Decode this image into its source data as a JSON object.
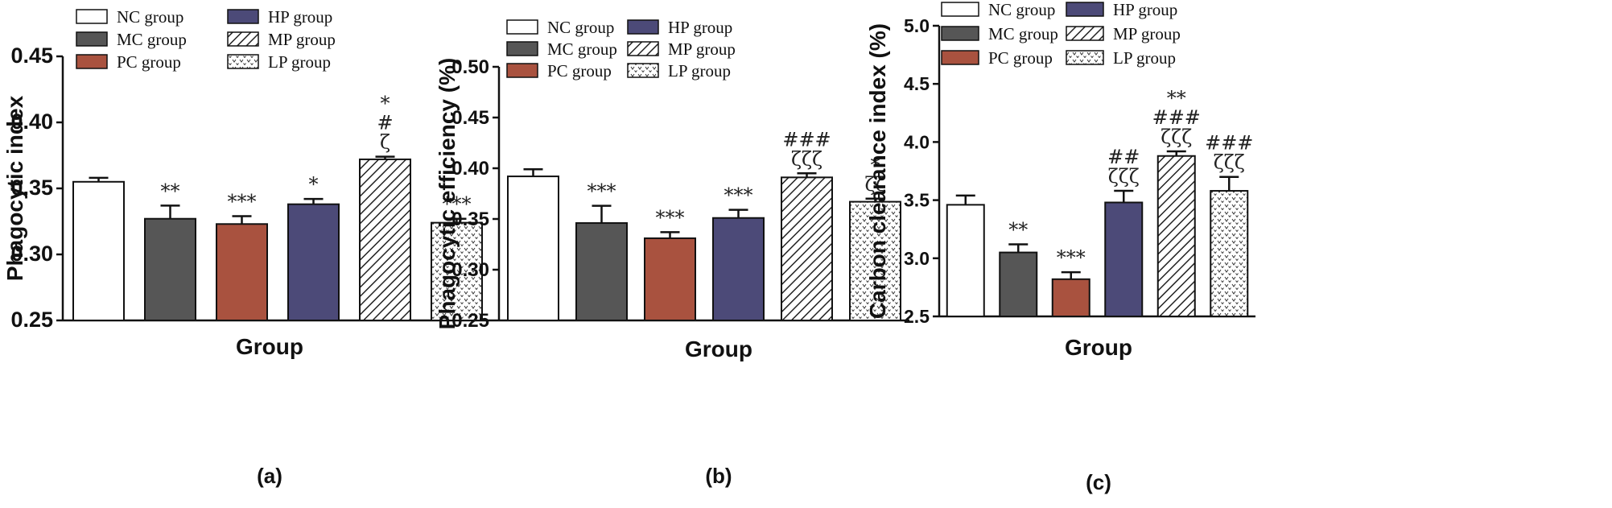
{
  "colors": {
    "NC": "#ffffff",
    "MC": "#565656",
    "PC": "#a9523f",
    "HP": "#4c4a78",
    "MP": "hatch",
    "LP": "dots"
  },
  "chart_data": [
    {
      "type": "bar",
      "panel_label": "(a)",
      "title": "",
      "xlabel": "Group",
      "ylabel": "Phagocytic index",
      "ylim": [
        0.25,
        0.45
      ],
      "yticks": [
        "0.25",
        "0.30",
        "0.35",
        "0.40",
        "0.45"
      ],
      "categories": [
        "NC group",
        "MC group",
        "PC group",
        "HP group",
        "MP group",
        "LP group"
      ],
      "values": [
        0.355,
        0.327,
        0.323,
        0.338,
        0.372,
        0.324
      ],
      "errors": [
        0.003,
        0.01,
        0.006,
        0.004,
        0.002,
        0.003
      ],
      "significance": [
        [],
        [
          "**"
        ],
        [
          "***"
        ],
        [
          "*"
        ],
        [
          "*",
          "#",
          "ζ"
        ],
        [
          "***"
        ]
      ],
      "legend": [
        "NC group",
        "HP group",
        "MC group",
        "MP group",
        "PC group",
        "LP group"
      ]
    },
    {
      "type": "bar",
      "panel_label": "(b)",
      "title": "",
      "xlabel": "Group",
      "ylabel": "Phagocytic efficiency (%)",
      "ylim": [
        0.25,
        0.5
      ],
      "yticks": [
        "0.25",
        "0.30",
        "0.35",
        "0.40",
        "0.45",
        "0.50"
      ],
      "categories": [
        "NC group",
        "MC group",
        "PC group",
        "HP group",
        "MP group",
        "LP group"
      ],
      "values": [
        0.392,
        0.346,
        0.331,
        0.351,
        0.391,
        0.367
      ],
      "errors": [
        0.007,
        0.017,
        0.006,
        0.008,
        0.004,
        0.003
      ],
      "significance": [
        [],
        [
          "***"
        ],
        [
          "***"
        ],
        [
          "***"
        ],
        [
          "###",
          "ζζζ"
        ],
        [
          "*",
          "ζζ"
        ]
      ],
      "legend": [
        "NC group",
        "HP group",
        "MC group",
        "MP group",
        "PC group",
        "LP group"
      ]
    },
    {
      "type": "bar",
      "panel_label": "(c)",
      "title": "",
      "xlabel": "Group",
      "ylabel": "Carbon clearance index (%)",
      "ylim": [
        2.5,
        5.0
      ],
      "yticks": [
        "2.5",
        "3.0",
        "3.5",
        "4.0",
        "4.5",
        "5.0"
      ],
      "categories": [
        "NC group",
        "MC group",
        "PC group",
        "HP group",
        "MP group",
        "LP group"
      ],
      "values": [
        3.46,
        3.05,
        2.82,
        3.48,
        3.88,
        3.58
      ],
      "errors": [
        0.08,
        0.07,
        0.06,
        0.1,
        0.04,
        0.12
      ],
      "significance": [
        [],
        [
          "**"
        ],
        [
          "***"
        ],
        [
          "##",
          "ζζζ"
        ],
        [
          "**",
          "###",
          "ζζζ"
        ],
        [
          "###",
          "ζζζ"
        ]
      ],
      "legend": [
        "NC group",
        "HP group",
        "MC group",
        "MP group",
        "PC group",
        "LP group"
      ]
    }
  ]
}
